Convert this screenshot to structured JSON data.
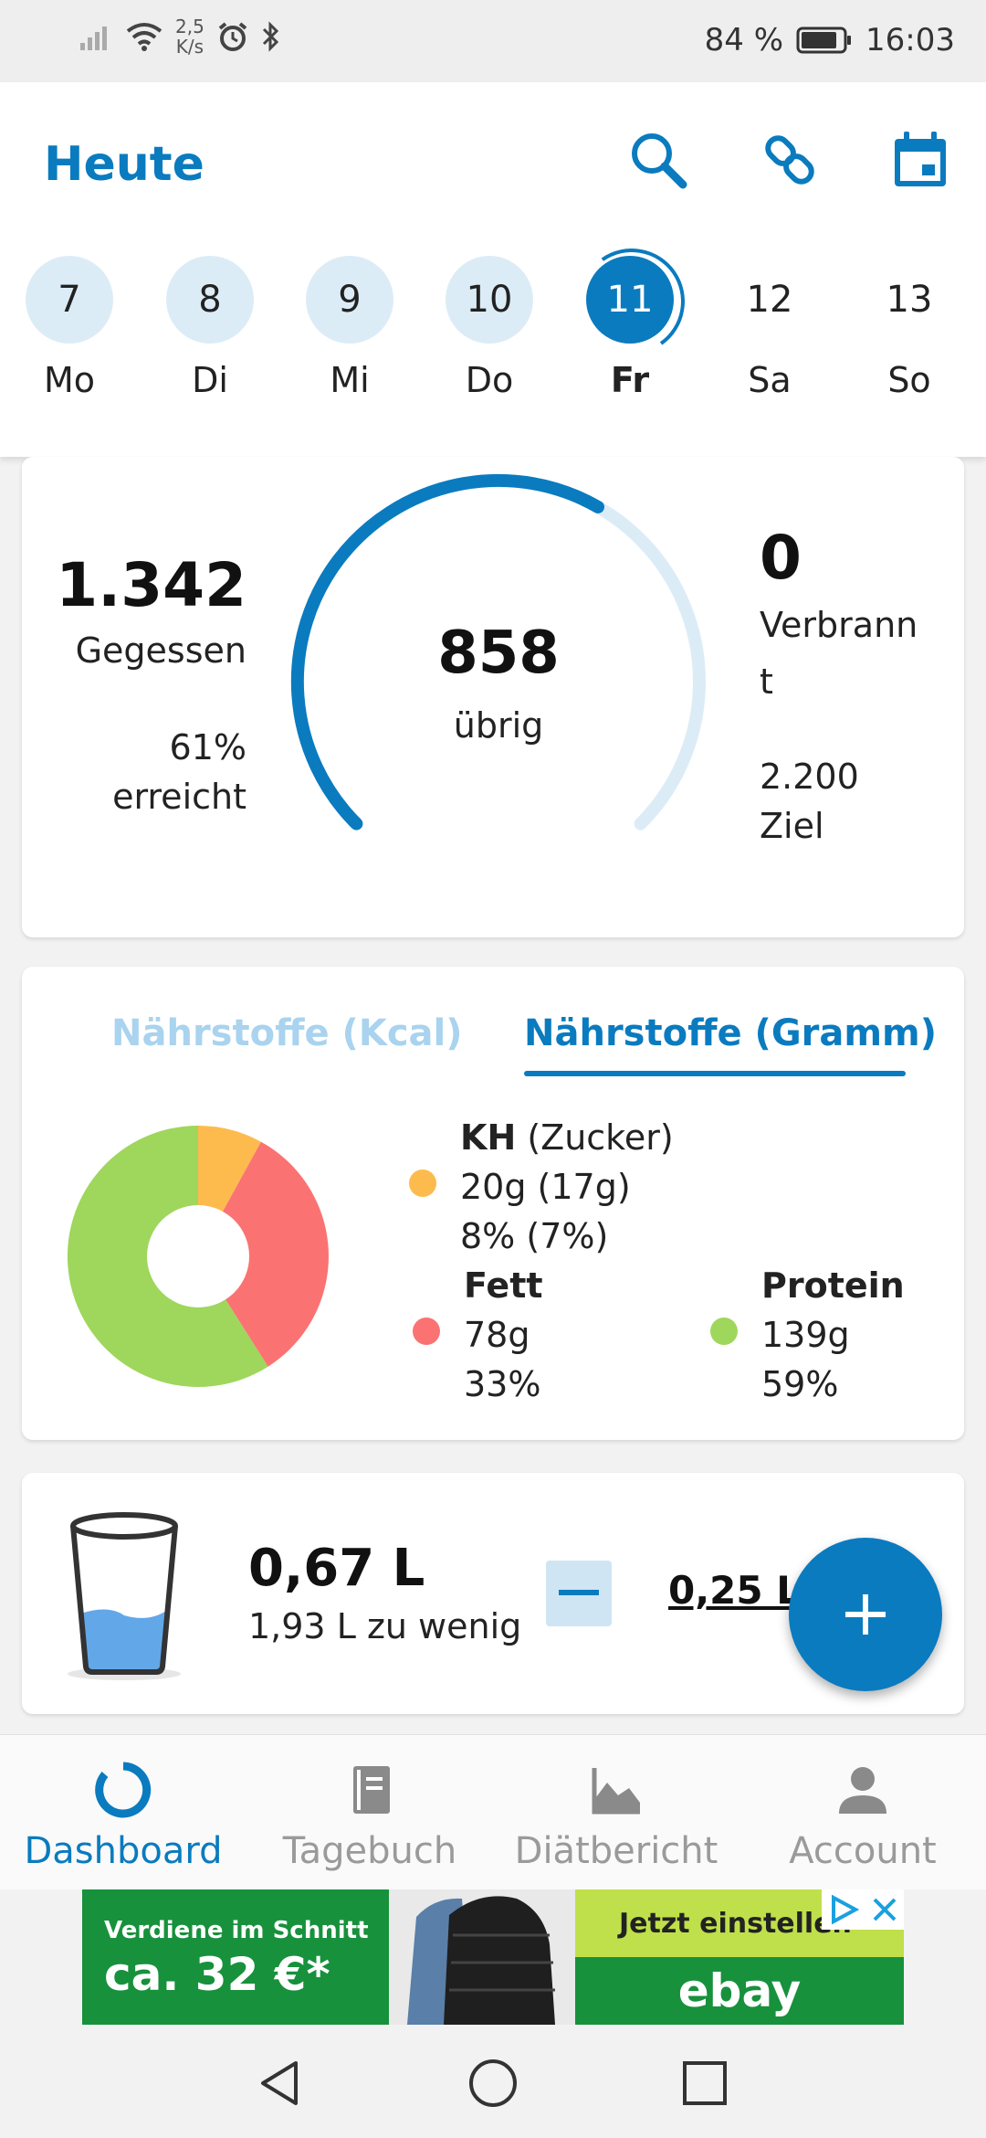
{
  "status_bar": {
    "net_speed_value": "2,5",
    "net_speed_unit": "K/s",
    "battery": "84 %",
    "time": "16:03"
  },
  "header": {
    "title": "Heute",
    "icons": [
      "search-icon",
      "link-icon",
      "calendar-icon"
    ]
  },
  "week": [
    {
      "num": "7",
      "label": "Mo",
      "state": "past"
    },
    {
      "num": "8",
      "label": "Di",
      "state": "past"
    },
    {
      "num": "9",
      "label": "Mi",
      "state": "past"
    },
    {
      "num": "10",
      "label": "Do",
      "state": "past"
    },
    {
      "num": "11",
      "label": "Fr",
      "state": "active"
    },
    {
      "num": "12",
      "label": "Sa",
      "state": "future"
    },
    {
      "num": "13",
      "label": "So",
      "state": "future"
    }
  ],
  "calories": {
    "eaten_value": "1.342",
    "eaten_label": "Gegessen",
    "percent": "61%",
    "percent_label": "erreicht",
    "remaining_value": "858",
    "remaining_label": "übrig",
    "burned_value": "0",
    "burned_label_1": "Verbrann",
    "burned_label_2": "t",
    "goal_value": "2.200",
    "goal_label": "Ziel",
    "progress_fraction": 0.61
  },
  "nutrients": {
    "tab_kcal": "Nährstoffe (Kcal)",
    "tab_gram": "Nährstoffe (Gramm)",
    "carbs": {
      "title": "KH",
      "title_extra": "(Zucker)",
      "line1": "20g (17g)",
      "line2": "8% (7%)",
      "color": "#fdbb4e"
    },
    "fat": {
      "title": "Fett",
      "line1": "78g",
      "line2": "33%",
      "color": "#fb7272"
    },
    "protein": {
      "title": "Protein",
      "line1": "139g",
      "line2": "59%",
      "color": "#9fd65c"
    },
    "chart_data": {
      "type": "pie",
      "categories": [
        "KH",
        "Fett",
        "Protein"
      ],
      "values": [
        8,
        33,
        59
      ],
      "colors": [
        "#fdbb4e",
        "#fb7272",
        "#9fd65c"
      ]
    }
  },
  "water": {
    "amount": "0,67 L",
    "deficit": "1,93 L zu wenig",
    "portion": "0,25 L",
    "fill_level": 0.4
  },
  "bottom_nav": [
    {
      "label": "Dashboard",
      "icon": "dashboard-icon",
      "active": true
    },
    {
      "label": "Tagebuch",
      "icon": "diary-icon",
      "active": false
    },
    {
      "label": "Diätbericht",
      "icon": "chart-icon",
      "active": false
    },
    {
      "label": "Account",
      "icon": "account-icon",
      "active": false
    }
  ],
  "ad": {
    "line1": "Verdiene im Schnitt",
    "line2": "ca. 32 €*",
    "cta": "Jetzt einstellen",
    "brand": "ebay"
  },
  "colors": {
    "primary": "#0a7bbf",
    "light_primary": "#dcecf7"
  }
}
